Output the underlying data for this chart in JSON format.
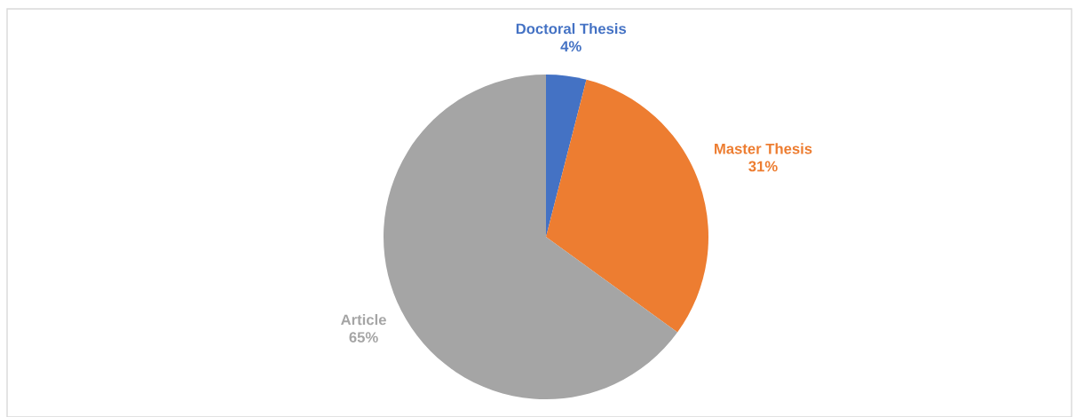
{
  "chart_data": {
    "type": "pie",
    "categories": [
      "Doctoral Thesis",
      "Master Thesis",
      "Article"
    ],
    "values": [
      4,
      31,
      65
    ],
    "colors": [
      "#4472c4",
      "#ed7d31",
      "#a5a5a5"
    ],
    "value_labels": [
      "4%",
      "31%",
      "65%"
    ],
    "legend": false
  }
}
